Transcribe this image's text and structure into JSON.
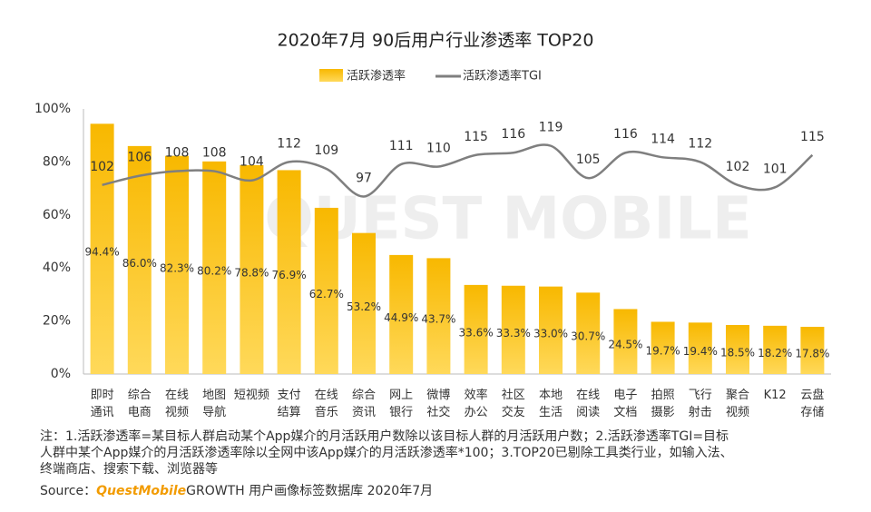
{
  "chart_data": {
    "type": "bar-line",
    "title": "2020年7月 90后用户行业渗透率 TOP20",
    "watermark": "QUEST MOBILE",
    "categories": [
      "即时\n通讯",
      "综合\n电商",
      "在线\n视频",
      "地图\n导航",
      "短视频",
      "支付\n结算",
      "在线\n音乐",
      "综合\n资讯",
      "网上\n银行",
      "微博\n社交",
      "效率\n办公",
      "社区\n交友",
      "本地\n生活",
      "在线\n阅读",
      "电子\n文档",
      "拍照\n摄影",
      "飞行\n射击",
      "聚合\n视频",
      "K12",
      "云盘\n存储"
    ],
    "series": [
      {
        "name": "活跃渗透率",
        "type": "bar",
        "color": "#fbc02d",
        "values": [
          94.4,
          86.0,
          82.3,
          80.2,
          78.8,
          76.9,
          62.7,
          53.2,
          44.9,
          43.7,
          33.6,
          33.3,
          33.0,
          30.7,
          24.5,
          19.7,
          19.4,
          18.5,
          18.2,
          17.8
        ],
        "value_labels": [
          "94.4%",
          "86.0%",
          "82.3%",
          "80.2%",
          "78.8%",
          "76.9%",
          "62.7%",
          "53.2%",
          "44.9%",
          "43.7%",
          "33.6%",
          "33.3%",
          "33.0%",
          "30.7%",
          "24.5%",
          "19.7%",
          "19.4%",
          "18.5%",
          "18.2%",
          "17.8%"
        ]
      },
      {
        "name": "活跃渗透率TGI",
        "type": "line",
        "axis": "y2",
        "color": "#7f7f7f",
        "values": [
          102,
          106,
          108,
          108,
          104,
          112,
          109,
          97,
          111,
          110,
          115,
          116,
          119,
          105,
          116,
          114,
          112,
          102,
          101,
          115
        ]
      }
    ],
    "ylim": [
      0,
      100
    ],
    "yticks": [
      {
        "value": 0,
        "label": "0%"
      },
      {
        "value": 20,
        "label": "20%"
      },
      {
        "value": 40,
        "label": "40%"
      },
      {
        "value": 60,
        "label": "60%"
      },
      {
        "value": 80,
        "label": "80%"
      },
      {
        "value": 100,
        "label": "100%"
      }
    ],
    "y2lim": [
      20,
      135
    ],
    "grid": false,
    "legend": "top"
  },
  "notes": [
    "注：1.活跃渗透率=某目标人群启动某个App媒介的月活跃用户数除以该目标人群的月活跃用户数；2.活跃渗透率TGI=目标",
    "人群中某个App媒介的月活跃渗透率除以全网中该App媒介的月活跃渗透率*100；3.TOP20已剔除工具类行业，如输入法、",
    "终端商店、搜索下载、浏览器等"
  ],
  "source": {
    "prefix": "Source：",
    "brand": "QuestMobile",
    "text": "GROWTH 用户画像标签数据库 2020年7月"
  }
}
